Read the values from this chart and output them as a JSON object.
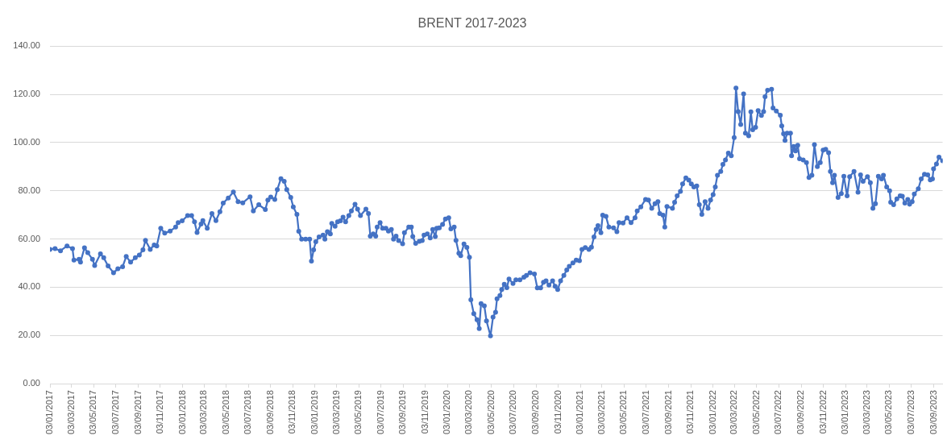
{
  "chart_data": {
    "type": "line",
    "title": "BRENT 2017-2023",
    "x": [
      "2017-01-03",
      "2017-01-17",
      "2017-02-01",
      "2017-02-19",
      "2017-03-06",
      "2017-03-10",
      "2017-03-24",
      "2017-03-28",
      "2017-04-08",
      "2017-04-17",
      "2017-04-30",
      "2017-05-06",
      "2017-05-22",
      "2017-05-31",
      "2017-06-12",
      "2017-06-27",
      "2017-07-09",
      "2017-07-22",
      "2017-08-01",
      "2017-08-13",
      "2017-08-26",
      "2017-09-06",
      "2017-09-16",
      "2017-09-23",
      "2017-10-06",
      "2017-10-17",
      "2017-10-24",
      "2017-11-04",
      "2017-11-15",
      "2017-11-30",
      "2017-12-15",
      "2017-12-22",
      "2018-01-02",
      "2018-01-17",
      "2018-01-28",
      "2018-02-05",
      "2018-02-12",
      "2018-02-23",
      "2018-02-28",
      "2018-03-12",
      "2018-03-25",
      "2018-04-05",
      "2018-04-16",
      "2018-04-25",
      "2018-05-09",
      "2018-05-23",
      "2018-06-05",
      "2018-06-18",
      "2018-07-08",
      "2018-07-17",
      "2018-08-01",
      "2018-08-19",
      "2018-08-26",
      "2018-09-03",
      "2018-09-14",
      "2018-09-21",
      "2018-10-01",
      "2018-10-10",
      "2018-10-17",
      "2018-10-28",
      "2018-11-04",
      "2018-11-14",
      "2018-11-19",
      "2018-11-27",
      "2018-12-08",
      "2018-12-19",
      "2018-12-24",
      "2018-12-30",
      "2019-01-05",
      "2019-01-14",
      "2019-01-25",
      "2019-01-30",
      "2019-02-06",
      "2019-02-14",
      "2019-02-18",
      "2019-02-27",
      "2019-03-06",
      "2019-03-14",
      "2019-03-21",
      "2019-03-28",
      "2019-04-06",
      "2019-04-13",
      "2019-04-23",
      "2019-04-30",
      "2019-05-08",
      "2019-05-23",
      "2019-05-30",
      "2019-06-04",
      "2019-06-12",
      "2019-06-19",
      "2019-06-23",
      "2019-07-01",
      "2019-07-08",
      "2019-07-17",
      "2019-07-24",
      "2019-08-01",
      "2019-08-07",
      "2019-08-14",
      "2019-08-21",
      "2019-09-01",
      "2019-09-06",
      "2019-09-18",
      "2019-09-25",
      "2019-09-29",
      "2019-10-07",
      "2019-10-17",
      "2019-10-25",
      "2019-10-30",
      "2019-11-08",
      "2019-11-16",
      "2019-11-23",
      "2019-11-30",
      "2019-12-04",
      "2019-12-11",
      "2019-12-20",
      "2019-12-28",
      "2020-01-06",
      "2020-01-12",
      "2020-01-21",
      "2020-01-26",
      "2020-02-03",
      "2020-02-08",
      "2020-02-17",
      "2020-02-25",
      "2020-03-03",
      "2020-03-07",
      "2020-03-15",
      "2020-03-24",
      "2020-03-30",
      "2020-04-04",
      "2020-04-13",
      "2020-04-19",
      "2020-04-30",
      "2020-05-07",
      "2020-05-14",
      "2020-05-18",
      "2020-05-26",
      "2020-05-31",
      "2020-06-07",
      "2020-06-14",
      "2020-06-20",
      "2020-07-01",
      "2020-07-09",
      "2020-07-20",
      "2020-07-31",
      "2020-08-07",
      "2020-08-17",
      "2020-08-29",
      "2020-09-06",
      "2020-09-15",
      "2020-09-23",
      "2020-09-30",
      "2020-10-08",
      "2020-10-18",
      "2020-10-25",
      "2020-11-01",
      "2020-11-09",
      "2020-11-18",
      "2020-11-26",
      "2020-12-03",
      "2020-12-13",
      "2020-12-22",
      "2020-12-31",
      "2021-01-07",
      "2021-01-16",
      "2021-01-26",
      "2021-02-02",
      "2021-02-09",
      "2021-02-15",
      "2021-02-20",
      "2021-02-28",
      "2021-03-05",
      "2021-03-14",
      "2021-03-22",
      "2021-04-04",
      "2021-04-13",
      "2021-04-19",
      "2021-04-30",
      "2021-05-11",
      "2021-05-22",
      "2021-06-02",
      "2021-06-08",
      "2021-06-18",
      "2021-07-01",
      "2021-07-09",
      "2021-07-18",
      "2021-07-27",
      "2021-08-04",
      "2021-08-09",
      "2021-08-18",
      "2021-08-23",
      "2021-08-29",
      "2021-09-13",
      "2021-09-19",
      "2021-09-26",
      "2021-10-05",
      "2021-10-11",
      "2021-10-20",
      "2021-10-28",
      "2021-11-04",
      "2021-11-11",
      "2021-11-19",
      "2021-11-26",
      "2021-12-03",
      "2021-12-12",
      "2021-12-20",
      "2021-12-27",
      "2022-01-03",
      "2022-01-09",
      "2022-01-15",
      "2022-01-24",
      "2022-01-30",
      "2022-02-06",
      "2022-02-14",
      "2022-02-22",
      "2022-03-02",
      "2022-03-07",
      "2022-03-13",
      "2022-03-20",
      "2022-03-28",
      "2022-04-02",
      "2022-04-11",
      "2022-04-17",
      "2022-04-22",
      "2022-04-30",
      "2022-05-07",
      "2022-05-16",
      "2022-05-22",
      "2022-05-26",
      "2022-06-02",
      "2022-06-13",
      "2022-06-17",
      "2022-06-26",
      "2022-07-07",
      "2022-07-11",
      "2022-07-16",
      "2022-07-20",
      "2022-07-26",
      "2022-08-04",
      "2022-08-07",
      "2022-08-13",
      "2022-08-18",
      "2022-08-24",
      "2022-08-29",
      "2022-09-08",
      "2022-09-17",
      "2022-09-24",
      "2022-10-02",
      "2022-10-09",
      "2022-10-17",
      "2022-10-25",
      "2022-11-02",
      "2022-11-09",
      "2022-11-17",
      "2022-11-22",
      "2022-11-28",
      "2022-12-03",
      "2022-12-13",
      "2022-12-22",
      "2022-12-29",
      "2023-01-07",
      "2023-01-14",
      "2023-01-26",
      "2023-02-06",
      "2023-02-13",
      "2023-02-20",
      "2023-03-04",
      "2023-03-12",
      "2023-03-19",
      "2023-03-26",
      "2023-04-03",
      "2023-04-12",
      "2023-04-17",
      "2023-04-26",
      "2023-05-04",
      "2023-05-07",
      "2023-05-15",
      "2023-05-24",
      "2023-06-02",
      "2023-06-08",
      "2023-06-15",
      "2023-06-23",
      "2023-06-28",
      "2023-07-05",
      "2023-07-11",
      "2023-07-22",
      "2023-07-30",
      "2023-08-08",
      "2023-08-17",
      "2023-08-24",
      "2023-08-30",
      "2023-09-02",
      "2023-09-10",
      "2023-09-17",
      "2023-09-27"
    ],
    "values": [
      55.7,
      56.0,
      55.1,
      57.1,
      56.0,
      51.2,
      51.6,
      50.4,
      56.3,
      54.3,
      51.6,
      49.0,
      53.8,
      52.2,
      48.8,
      46.0,
      47.6,
      48.5,
      52.7,
      50.4,
      52.2,
      53.3,
      55.5,
      59.4,
      55.7,
      57.5,
      57.1,
      64.4,
      62.4,
      63.3,
      64.9,
      66.8,
      67.5,
      69.7,
      69.7,
      67.1,
      62.7,
      66.2,
      67.6,
      64.4,
      70.5,
      67.6,
      71.3,
      74.9,
      77.0,
      79.5,
      75.5,
      75.0,
      77.5,
      71.6,
      74.2,
      72.2,
      76.1,
      77.4,
      76.4,
      80.5,
      85.0,
      83.9,
      80.5,
      77.2,
      73.3,
      70.2,
      63.2,
      59.9,
      59.9,
      59.9,
      50.8,
      55.5,
      58.8,
      60.8,
      61.6,
      59.9,
      63.0,
      62.1,
      66.4,
      65.3,
      67.1,
      67.5,
      69.0,
      67.1,
      69.7,
      71.6,
      74.4,
      72.4,
      69.7,
      72.4,
      70.5,
      61.2,
      62.1,
      61.2,
      64.9,
      66.8,
      64.4,
      64.4,
      63.3,
      63.9,
      59.9,
      61.2,
      59.3,
      58.0,
      62.6,
      64.9,
      64.9,
      61.0,
      58.2,
      59.0,
      59.3,
      61.6,
      62.1,
      60.4,
      63.9,
      61.0,
      64.4,
      64.6,
      66.0,
      68.3,
      68.8,
      64.2,
      64.9,
      59.4,
      54.1,
      53.1,
      57.9,
      56.5,
      52.4,
      34.8,
      29.0,
      26.5,
      22.8,
      33.2,
      32.3,
      26.0,
      19.8,
      27.6,
      29.6,
      35.2,
      36.5,
      39.0,
      41.2,
      39.8,
      43.4,
      41.5,
      43.0,
      43.0,
      44.1,
      44.9,
      46.0,
      45.5,
      39.7,
      39.7,
      42.0,
      42.6,
      40.9,
      42.6,
      40.4,
      39.0,
      42.6,
      44.9,
      47.1,
      48.6,
      50.1,
      51.2,
      51.0,
      55.7,
      56.4,
      55.7,
      56.6,
      60.8,
      63.9,
      65.5,
      62.6,
      69.9,
      69.4,
      64.9,
      64.6,
      63.0,
      66.8,
      66.6,
      68.8,
      66.8,
      68.8,
      71.6,
      73.3,
      76.4,
      76.1,
      72.7,
      74.6,
      75.5,
      70.5,
      69.9,
      64.9,
      73.5,
      72.7,
      75.2,
      77.9,
      79.7,
      82.8,
      85.3,
      84.4,
      82.8,
      81.6,
      82.0,
      74.2,
      70.2,
      75.5,
      72.7,
      76.1,
      78.4,
      81.6,
      86.4,
      88.0,
      90.9,
      92.8,
      95.6,
      94.5,
      102.0,
      122.6,
      112.8,
      107.5,
      120.2,
      103.9,
      102.8,
      112.7,
      105.3,
      106.3,
      113.2,
      111.2,
      112.8,
      119.0,
      121.7,
      122.1,
      114.3,
      113.1,
      111.3,
      106.9,
      103.6,
      100.9,
      103.9,
      103.9,
      94.5,
      98.4,
      96.5,
      98.9,
      93.3,
      92.8,
      91.7,
      85.5,
      86.4,
      99.1,
      90.0,
      91.7,
      96.9,
      97.2,
      95.8,
      88.0,
      83.3,
      86.4,
      77.2,
      78.8,
      86.0,
      77.9,
      85.8,
      88.0,
      79.4,
      86.6,
      83.9,
      85.8,
      83.3,
      72.7,
      74.6,
      86.0,
      84.9,
      86.4,
      81.6,
      80.0,
      75.2,
      74.2,
      76.6,
      77.9,
      77.7,
      74.9,
      76.4,
      74.4,
      75.5,
      78.6,
      80.8,
      84.9,
      86.8,
      86.6,
      84.5,
      84.9,
      89.1,
      91.1,
      93.9,
      92.4
    ],
    "color": "#4472c4",
    "xlim": [
      "2017-01-03",
      "2023-09-27"
    ],
    "xticks": [
      {
        "value": "2017-01-03",
        "label": "03/01/2017"
      },
      {
        "value": "2017-03-03",
        "label": "03/03/2017"
      },
      {
        "value": "2017-05-03",
        "label": "03/05/2017"
      },
      {
        "value": "2017-07-03",
        "label": "03/07/2017"
      },
      {
        "value": "2017-09-03",
        "label": "03/09/2017"
      },
      {
        "value": "2017-11-03",
        "label": "03/11/2017"
      },
      {
        "value": "2018-01-03",
        "label": "03/01/2018"
      },
      {
        "value": "2018-03-03",
        "label": "03/03/2018"
      },
      {
        "value": "2018-05-03",
        "label": "03/05/2018"
      },
      {
        "value": "2018-07-03",
        "label": "03/07/2018"
      },
      {
        "value": "2018-09-03",
        "label": "03/09/2018"
      },
      {
        "value": "2018-11-03",
        "label": "03/11/2018"
      },
      {
        "value": "2019-01-03",
        "label": "03/01/2019"
      },
      {
        "value": "2019-03-03",
        "label": "03/03/2019"
      },
      {
        "value": "2019-05-03",
        "label": "03/05/2019"
      },
      {
        "value": "2019-07-03",
        "label": "03/07/2019"
      },
      {
        "value": "2019-09-03",
        "label": "03/09/2019"
      },
      {
        "value": "2019-11-03",
        "label": "03/11/2019"
      },
      {
        "value": "2020-01-03",
        "label": "03/01/2020"
      },
      {
        "value": "2020-03-03",
        "label": "03/03/2020"
      },
      {
        "value": "2020-05-03",
        "label": "03/05/2020"
      },
      {
        "value": "2020-07-03",
        "label": "03/07/2020"
      },
      {
        "value": "2020-09-03",
        "label": "03/09/2020"
      },
      {
        "value": "2020-11-03",
        "label": "03/11/2020"
      },
      {
        "value": "2021-01-03",
        "label": "03/01/2021"
      },
      {
        "value": "2021-03-03",
        "label": "03/03/2021"
      },
      {
        "value": "2021-05-03",
        "label": "03/05/2021"
      },
      {
        "value": "2021-07-03",
        "label": "03/07/2021"
      },
      {
        "value": "2021-09-03",
        "label": "03/09/2021"
      },
      {
        "value": "2021-11-03",
        "label": "03/11/2021"
      },
      {
        "value": "2022-01-03",
        "label": "03/01/2022"
      },
      {
        "value": "2022-03-03",
        "label": "03/03/2022"
      },
      {
        "value": "2022-05-03",
        "label": "03/05/2022"
      },
      {
        "value": "2022-07-03",
        "label": "03/07/2022"
      },
      {
        "value": "2022-09-03",
        "label": "03/09/2022"
      },
      {
        "value": "2022-11-03",
        "label": "03/11/2022"
      },
      {
        "value": "2023-01-03",
        "label": "03/01/2023"
      },
      {
        "value": "2023-03-03",
        "label": "03/03/2023"
      },
      {
        "value": "2023-05-03",
        "label": "03/05/2023"
      },
      {
        "value": "2023-07-03",
        "label": "03/07/2023"
      },
      {
        "value": "2023-09-03",
        "label": "03/09/2023"
      }
    ],
    "ylim": [
      0,
      140
    ],
    "yticks": [
      {
        "value": 0,
        "label": "0.00"
      },
      {
        "value": 20,
        "label": "20.00"
      },
      {
        "value": 40,
        "label": "40.00"
      },
      {
        "value": 60,
        "label": "60.00"
      },
      {
        "value": 80,
        "label": "80.00"
      },
      {
        "value": 100,
        "label": "100.00"
      },
      {
        "value": 120,
        "label": "120.00"
      },
      {
        "value": 140,
        "label": "140.00"
      }
    ],
    "grid": "y",
    "marker": "circle",
    "line_style": "solid"
  }
}
